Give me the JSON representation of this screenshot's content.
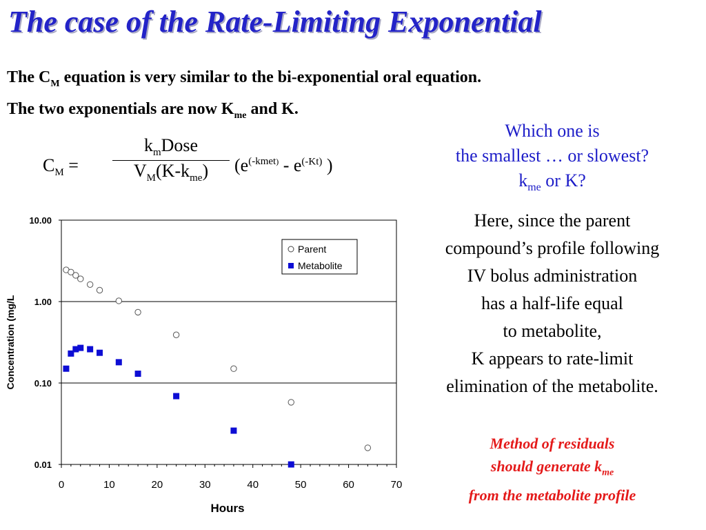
{
  "title": "The case of the Rate-Limiting Exponential",
  "intro": {
    "line1_a": "The C",
    "line1_sub": "M",
    "line1_b": " equation is very similar to the bi-exponential oral equation.",
    "line2_a": "The two exponentials are now K",
    "line2_sub": "me",
    "line2_b": " and K."
  },
  "equation": {
    "lhs_a": "C",
    "lhs_sub": "M",
    "lhs_b": " =",
    "num_a": "k",
    "num_sub": "m",
    "num_b": "Dose",
    "den_a": "V",
    "den_sub1": "M",
    "den_b": "(K-k",
    "den_sub2": "me",
    "den_c": ")",
    "paren_open": "(e",
    "exp1_a": "(-k",
    "exp1_sub": "me",
    "exp1_b": "t",
    "exp1_c": ")",
    "minus": " - e",
    "exp2": "(-Kt)",
    "paren_close": " )"
  },
  "question": {
    "line1": "Which one is",
    "line2": "the smallest … or slowest?",
    "line3_a": "k",
    "line3_sub": "me",
    "line3_b": " or K?"
  },
  "explanation": [
    "Here, since the parent",
    "compound’s profile following",
    "IV bolus administration",
    "has a half-life equal",
    "to metabolite,",
    "K appears to rate-limit",
    "elimination of the metabolite."
  ],
  "method": {
    "line1": "Method of residuals",
    "line2_a": "should generate k",
    "line2_sub": "me",
    "line3": "from the metabolite profile"
  },
  "colors": {
    "title": "#2323c8",
    "question": "#1c1cc8",
    "method": "#e41a1a",
    "metabolite": "#0d0dd4"
  },
  "chart_data": {
    "type": "scatter",
    "xlabel": "Hours",
    "ylabel": "Concentration (mg/L",
    "xlim": [
      0,
      70
    ],
    "ylim": [
      0.01,
      10
    ],
    "yscale": "log",
    "xticks": [
      0,
      10,
      20,
      30,
      40,
      50,
      60,
      70
    ],
    "yticks": [
      10,
      1,
      0.1,
      0.01
    ],
    "ytick_labels": [
      "10.00",
      "1.00",
      "0.10",
      "0.01"
    ],
    "grid": "horizontal",
    "legend_position": "top-right",
    "series": [
      {
        "name": "Parent",
        "marker": "open-circle",
        "x": [
          1,
          2,
          3,
          4,
          6,
          8,
          12,
          16,
          24,
          36,
          48,
          64
        ],
        "y": [
          2.45,
          2.3,
          2.1,
          1.9,
          1.62,
          1.38,
          1.02,
          0.74,
          0.39,
          0.15,
          0.058,
          0.016
        ]
      },
      {
        "name": "Metabolite",
        "marker": "filled-square",
        "x": [
          1,
          2,
          3,
          4,
          6,
          8,
          12,
          16,
          24,
          36,
          48
        ],
        "y": [
          0.15,
          0.23,
          0.26,
          0.27,
          0.26,
          0.235,
          0.18,
          0.13,
          0.069,
          0.026,
          0.01
        ]
      }
    ]
  }
}
